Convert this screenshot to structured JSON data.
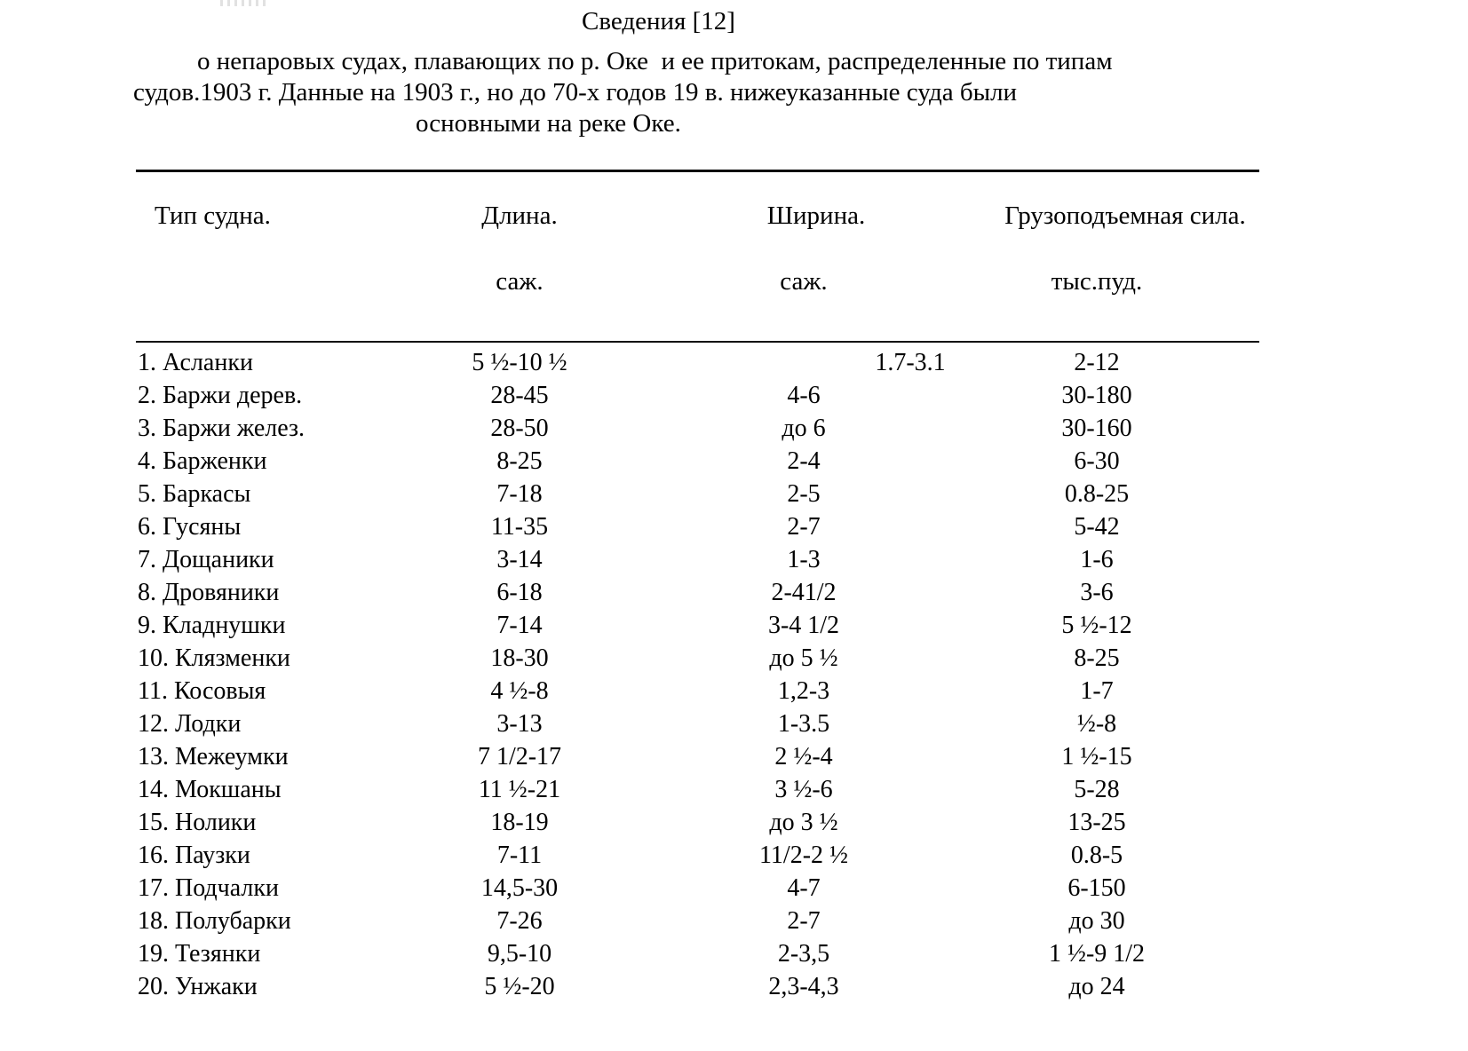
{
  "title": {
    "lines": [
      "Сведения [12]",
      "о непаровых судах, плавающих по р. Оке  и ее притокам, распределенные по типам",
      "судов.1903 г. Данные на 1903 г., но до 70-х годов 19 в. нижеуказанные суда были",
      "основными на реке Оке."
    ]
  },
  "table": {
    "headers": {
      "type": "Тип судна.",
      "length": "Длина.",
      "width": "Ширина.",
      "capacity": "Грузоподъемная сила."
    },
    "units": {
      "length": "саж.",
      "width": "саж.",
      "capacity": "тыс.пуд."
    },
    "rows": [
      {
        "label": "1. Асланки",
        "length": "5 ½-10 ½",
        "width": "1.7-3.1",
        "capacity": "2-12"
      },
      {
        "label": "2. Баржи дерев.",
        "length": "28-45",
        "width": "4-6",
        "capacity": "30-180"
      },
      {
        "label": "3. Баржи желез.",
        "length": "28-50",
        "width": "до 6",
        "capacity": "30-160"
      },
      {
        "label": "4. Барженки",
        "length": "8-25",
        "width": "2-4",
        "capacity": "6-30"
      },
      {
        "label": "5. Баркасы",
        "length": "7-18",
        "width": "2-5",
        "capacity": "0.8-25"
      },
      {
        "label": "6. Гусяны",
        "length": "11-35",
        "width": "2-7",
        "capacity": "5-42"
      },
      {
        "label": "7. Дощаники",
        "length": "3-14",
        "width": "1-3",
        "capacity": "1-6"
      },
      {
        "label": "8. Дровяники",
        "length": "6-18",
        "width": "2-41/2",
        "capacity": "3-6"
      },
      {
        "label": "9. Кладнушки",
        "length": "7-14",
        "width": "3-4 1/2",
        "capacity": "5 ½-12"
      },
      {
        "label": "10. Клязменки",
        "length": "18-30",
        "width": "до 5 ½",
        "capacity": "8-25"
      },
      {
        "label": "11. Косовыя",
        "length": "4 ½-8",
        "width": "1,2-3",
        "capacity": "1-7"
      },
      {
        "label": "12. Лодки",
        "length": "3-13",
        "width": "1-3.5",
        "capacity": "½-8"
      },
      {
        "label": "13. Межеумки",
        "length": "7 1/2-17",
        "width": "2 ½-4",
        "capacity": "1 ½-15"
      },
      {
        "label": "14. Мокшаны",
        "length": "11 ½-21",
        "width": "3 ½-6",
        "capacity": "5-28"
      },
      {
        "label": "15. Нолики",
        "length": "18-19",
        "width": "до 3 ½",
        "capacity": "13-25"
      },
      {
        "label": "16. Паузки",
        "length": "7-11",
        "width": "11/2-2 ½",
        "capacity": "0.8-5"
      },
      {
        "label": "17. Подчалки",
        "length": "14,5-30",
        "width": "4-7",
        "capacity": "6-150"
      },
      {
        "label": "18. Полубарки",
        "length": "7-26",
        "width": "2-7",
        "capacity": "до 30"
      },
      {
        "label": "19. Тезянки",
        "length": "9,5-10",
        "width": "2-3,5",
        "capacity": "1 ½-9 1/2"
      },
      {
        "label": "20. Унжаки",
        "length": "5 ½-20",
        "width": "2,3-4,3",
        "capacity": "до 24"
      }
    ]
  },
  "colors": {
    "text": "#000000",
    "background": "#ffffff",
    "rule": "#0d0d0d"
  }
}
